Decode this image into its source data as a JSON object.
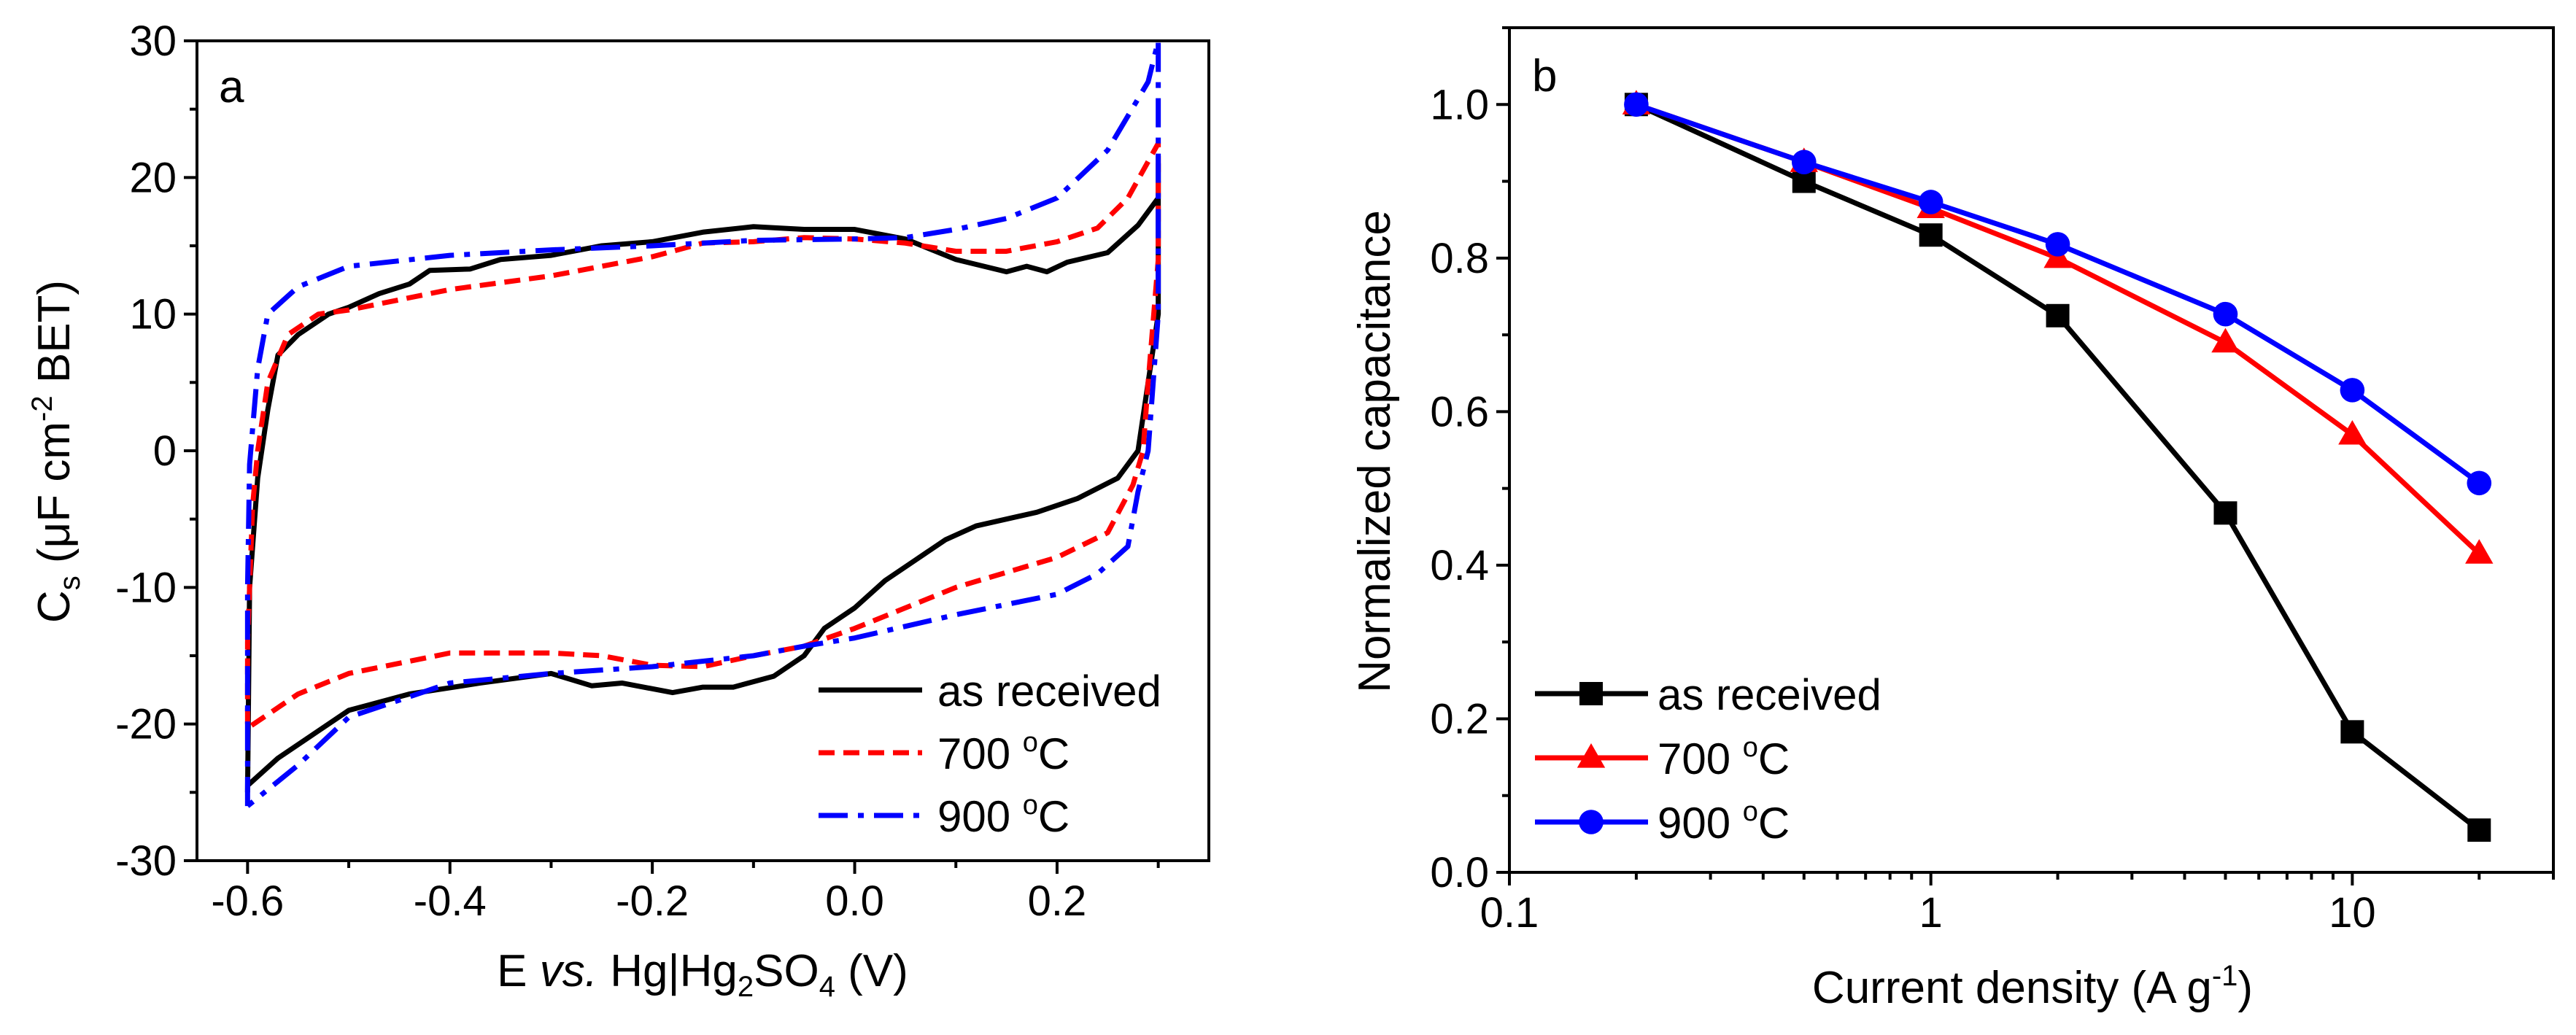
{
  "chart_data": [
    {
      "panel": "a",
      "type": "line",
      "panel_label": "a",
      "xlabel": {
        "p1": "E ",
        "p2": "vs.",
        "p3": " Hg|Hg",
        "sub1": "2",
        "p4": "SO",
        "sub2": "4",
        "p5": " (V)"
      },
      "ylabel": {
        "p1": "C",
        "sub": "s",
        "p2": " (μF cm",
        "sup": "-2",
        "p3": " BET)"
      },
      "xlim": [
        -0.65,
        0.35
      ],
      "ylim": [
        -30,
        30
      ],
      "xticks": [
        -0.6,
        -0.4,
        -0.2,
        0.0,
        0.2
      ],
      "xtick_labels": [
        "-0.6",
        "-0.4",
        "-0.2",
        "0.0",
        "0.2"
      ],
      "yticks": [
        -30,
        -20,
        -10,
        0,
        10,
        20,
        30
      ],
      "ytick_labels": [
        "-30",
        "-20",
        "-10",
        "0",
        "10",
        "20",
        "30"
      ],
      "legend_position": "bottom-right",
      "series": [
        {
          "name": "as received",
          "color": "#000000",
          "dash": "solid",
          "points": [
            [
              -0.6,
              -25
            ],
            [
              -0.598,
              -10
            ],
            [
              -0.59,
              -2
            ],
            [
              -0.58,
              3
            ],
            [
              -0.57,
              7
            ],
            [
              -0.55,
              8.5
            ],
            [
              -0.52,
              10
            ],
            [
              -0.5,
              10.5
            ],
            [
              -0.47,
              11.5
            ],
            [
              -0.44,
              12.2
            ],
            [
              -0.42,
              13.2
            ],
            [
              -0.38,
              13.3
            ],
            [
              -0.35,
              14
            ],
            [
              -0.3,
              14.3
            ],
            [
              -0.25,
              15
            ],
            [
              -0.2,
              15.3
            ],
            [
              -0.15,
              16
            ],
            [
              -0.1,
              16.4
            ],
            [
              -0.05,
              16.2
            ],
            [
              0,
              16.2
            ],
            [
              0.05,
              15.5
            ],
            [
              0.1,
              14
            ],
            [
              0.15,
              13.1
            ],
            [
              0.17,
              13.5
            ],
            [
              0.19,
              13.1
            ],
            [
              0.21,
              13.8
            ],
            [
              0.25,
              14.5
            ],
            [
              0.28,
              16.5
            ],
            [
              0.3,
              18.5
            ],
            [
              0.3,
              21
            ],
            [
              0.3,
              10
            ],
            [
              0.29,
              5
            ],
            [
              0.28,
              0
            ],
            [
              0.26,
              -2
            ],
            [
              0.22,
              -3.5
            ],
            [
              0.18,
              -4.5
            ],
            [
              0.12,
              -5.5
            ],
            [
              0.09,
              -6.5
            ],
            [
              0.06,
              -8
            ],
            [
              0.03,
              -9.5
            ],
            [
              0,
              -11.5
            ],
            [
              -0.03,
              -13
            ],
            [
              -0.05,
              -15
            ],
            [
              -0.08,
              -16.5
            ],
            [
              -0.12,
              -17.3
            ],
            [
              -0.15,
              -17.3
            ],
            [
              -0.18,
              -17.7
            ],
            [
              -0.23,
              -17
            ],
            [
              -0.26,
              -17.2
            ],
            [
              -0.3,
              -16.3
            ],
            [
              -0.37,
              -17
            ],
            [
              -0.44,
              -17.8
            ],
            [
              -0.5,
              -19
            ],
            [
              -0.53,
              -20.5
            ],
            [
              -0.57,
              -22.5
            ],
            [
              -0.6,
              -24.5
            ]
          ]
        },
        {
          "name": "700 °C",
          "label_main": "700 ",
          "label_sup": "o",
          "label_end": "C",
          "color": "#ff0000",
          "dash": "dash",
          "points": [
            [
              -0.6,
              -20
            ],
            [
              -0.6,
              -14
            ],
            [
              -0.595,
              -4
            ],
            [
              -0.59,
              0
            ],
            [
              -0.58,
              5
            ],
            [
              -0.56,
              8.5
            ],
            [
              -0.53,
              10
            ],
            [
              -0.5,
              10.3
            ],
            [
              -0.4,
              11.8
            ],
            [
              -0.3,
              12.8
            ],
            [
              -0.2,
              14.2
            ],
            [
              -0.15,
              15.2
            ],
            [
              -0.1,
              15.3
            ],
            [
              -0.05,
              15.6
            ],
            [
              0,
              15.5
            ],
            [
              0.05,
              15.2
            ],
            [
              0.1,
              14.6
            ],
            [
              0.15,
              14.6
            ],
            [
              0.2,
              15.3
            ],
            [
              0.24,
              16.3
            ],
            [
              0.27,
              18.5
            ],
            [
              0.3,
              22.5
            ],
            [
              0.3,
              14
            ],
            [
              0.29,
              5
            ],
            [
              0.285,
              0
            ],
            [
              0.275,
              -2.5
            ],
            [
              0.25,
              -6
            ],
            [
              0.2,
              -7.8
            ],
            [
              0.1,
              -10
            ],
            [
              0,
              -13
            ],
            [
              -0.05,
              -14.3
            ],
            [
              -0.1,
              -15
            ],
            [
              -0.15,
              -15.8
            ],
            [
              -0.2,
              -15.7
            ],
            [
              -0.25,
              -15
            ],
            [
              -0.3,
              -14.8
            ],
            [
              -0.4,
              -14.8
            ],
            [
              -0.5,
              -16.3
            ],
            [
              -0.55,
              -17.8
            ],
            [
              -0.6,
              -20.3
            ]
          ]
        },
        {
          "name": "900 °C",
          "label_main": "900 ",
          "label_sup": "o",
          "label_end": "C",
          "color": "#0000ff",
          "dash": "dashdot",
          "points": [
            [
              -0.6,
              -26
            ],
            [
              -0.6,
              -10
            ],
            [
              -0.598,
              -1
            ],
            [
              -0.59,
              6
            ],
            [
              -0.58,
              10
            ],
            [
              -0.55,
              12
            ],
            [
              -0.5,
              13.5
            ],
            [
              -0.4,
              14.3
            ],
            [
              -0.3,
              14.7
            ],
            [
              -0.2,
              15
            ],
            [
              -0.1,
              15.4
            ],
            [
              0,
              15.5
            ],
            [
              0.05,
              15.6
            ],
            [
              0.1,
              16.2
            ],
            [
              0.15,
              17
            ],
            [
              0.2,
              18.5
            ],
            [
              0.25,
              22
            ],
            [
              0.29,
              27
            ],
            [
              0.3,
              30
            ],
            [
              0.3,
              10
            ],
            [
              0.29,
              0
            ],
            [
              0.28,
              -3
            ],
            [
              0.27,
              -7
            ],
            [
              0.24,
              -9
            ],
            [
              0.2,
              -10.5
            ],
            [
              0.1,
              -12
            ],
            [
              0,
              -13.7
            ],
            [
              -0.05,
              -14.3
            ],
            [
              -0.1,
              -15
            ],
            [
              -0.2,
              -15.8
            ],
            [
              -0.3,
              -16.3
            ],
            [
              -0.4,
              -17
            ],
            [
              -0.5,
              -19.5
            ],
            [
              -0.55,
              -23
            ],
            [
              -0.6,
              -26
            ]
          ]
        }
      ]
    },
    {
      "panel": "b",
      "type": "line",
      "panel_label": "b",
      "xlabel": {
        "p1": "Current density (A g",
        "sup": "-1",
        "p2": ")"
      },
      "ylabel": "Normalized capacitance",
      "xscale": "log",
      "xlim": [
        0.1,
        30
      ],
      "ylim": [
        0,
        1.1
      ],
      "xticks": [
        0.1,
        1,
        10
      ],
      "xtick_labels": [
        "0.1",
        "1",
        "10"
      ],
      "yticks": [
        0.0,
        0.2,
        0.4,
        0.6,
        0.8,
        1.0
      ],
      "ytick_labels": [
        "0.0",
        "0.2",
        "0.4",
        "0.6",
        "0.8",
        "1.0"
      ],
      "legend_position": "bottom-left",
      "x": [
        0.2,
        0.5,
        1,
        2,
        5,
        10,
        20
      ],
      "series": [
        {
          "name": "as received",
          "color": "#000000",
          "marker": "square",
          "values": [
            1.0,
            0.9,
            0.83,
            0.725,
            0.468,
            0.183,
            0.055
          ]
        },
        {
          "name": "700 °C",
          "label_main": "700 ",
          "label_sup": "o",
          "label_end": "C",
          "color": "#ff0000",
          "marker": "triangle",
          "values": [
            1.0,
            0.925,
            0.865,
            0.8,
            0.69,
            0.57,
            0.415
          ]
        },
        {
          "name": "900 °C",
          "label_main": "900 ",
          "label_sup": "o",
          "label_end": "C",
          "color": "#0000ff",
          "marker": "circle",
          "values": [
            1.0,
            0.925,
            0.873,
            0.818,
            0.727,
            0.628,
            0.507
          ]
        }
      ]
    }
  ]
}
